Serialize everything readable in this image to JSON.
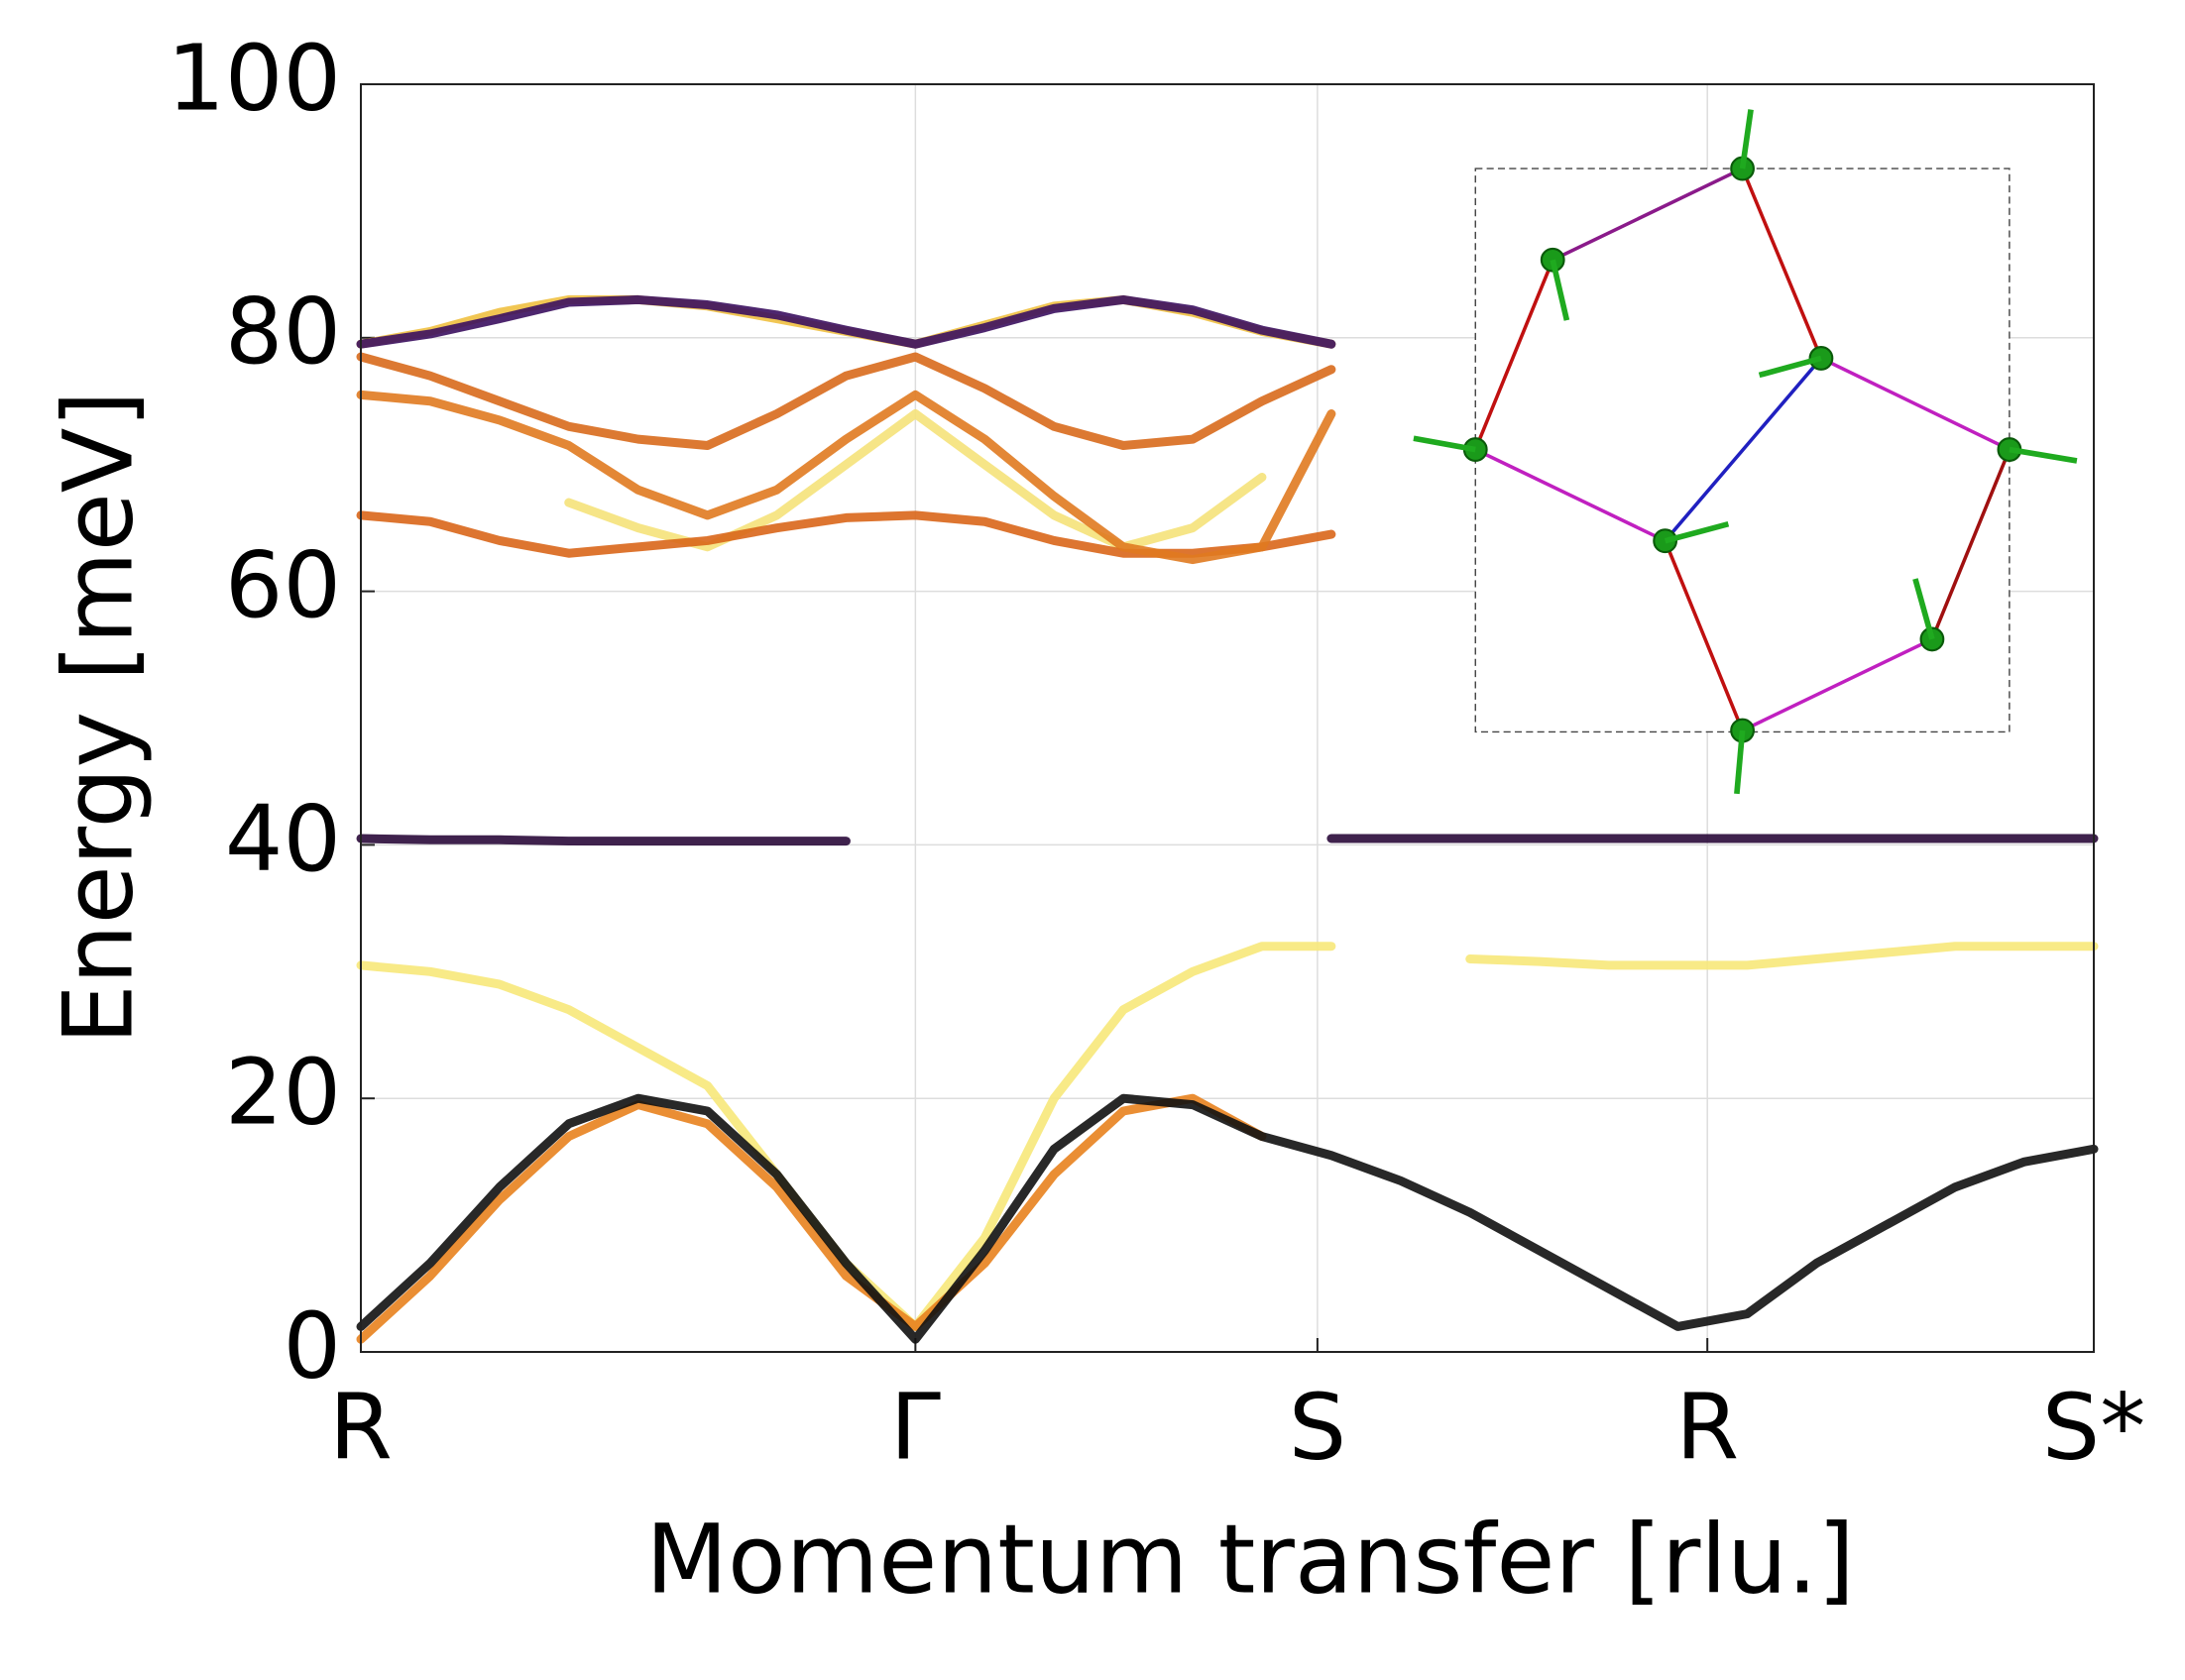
{
  "chart_data": {
    "type": "line",
    "xlabel": "Momentum transfer [rlu.]",
    "ylabel": "Energy [meV]",
    "x": [
      0,
      0.04,
      0.08,
      0.12,
      0.16,
      0.2,
      0.24,
      0.28,
      0.32,
      0.36,
      0.4,
      0.44,
      0.48,
      0.52,
      0.56,
      0.6,
      0.64,
      0.68,
      0.72,
      0.76,
      0.8,
      0.84,
      0.88,
      0.92,
      0.96,
      1
    ],
    "xlim": [
      0,
      1
    ],
    "xticks": [
      {
        "value": 0,
        "label": "R"
      },
      {
        "value": 0.32,
        "label": "Γ"
      },
      {
        "value": 0.552,
        "label": "S"
      },
      {
        "value": 0.777,
        "label": "R"
      },
      {
        "value": 1,
        "label": "S*"
      }
    ],
    "ylim": [
      0,
      100
    ],
    "yticks": [
      0,
      20,
      40,
      60,
      80,
      100
    ],
    "grid": true,
    "series": [
      {
        "color": "#f7e87a",
        "values": [
          30.5,
          30,
          29,
          27,
          24,
          21,
          14,
          7,
          2,
          9,
          20,
          27,
          30,
          32,
          32,
          null,
          31,
          30.8,
          30.5,
          30.5,
          30.5,
          31,
          31.5,
          32,
          32,
          32
        ]
      },
      {
        "color": "#e8821e",
        "values": [
          1,
          6,
          12,
          17,
          19.5,
          18,
          13,
          6,
          2,
          7,
          14,
          19,
          20,
          17,
          null,
          null,
          null,
          null,
          null,
          null,
          null,
          null,
          null,
          null,
          null,
          null
        ]
      },
      {
        "color": "#111111",
        "values": [
          2,
          7,
          13,
          18,
          20,
          19,
          14,
          7,
          1,
          8,
          16,
          20,
          19.5,
          17,
          15.5,
          13.5,
          11,
          8,
          5,
          2,
          3,
          7,
          10,
          13,
          15,
          16
        ]
      },
      {
        "color": "#2a0a3a",
        "values": [
          40.5,
          40.4,
          40.4,
          40.3,
          40.3,
          40.3,
          40.3,
          40.3,
          null,
          null,
          null,
          null,
          null,
          null,
          40.5,
          40.5,
          40.5,
          40.5,
          40.5,
          40.5,
          40.5,
          40.5,
          40.5,
          40.5,
          40.5,
          40.5
        ]
      },
      {
        "color": "#f5e27a",
        "values": [
          null,
          null,
          null,
          67,
          65,
          63.5,
          66,
          70,
          74,
          70,
          66,
          63.5,
          65,
          69,
          null,
          null,
          null,
          null,
          null,
          null,
          null,
          null,
          null,
          null,
          null,
          null
        ]
      },
      {
        "color": "#d9661a",
        "values": [
          66,
          65.5,
          64,
          63,
          63.5,
          64,
          65,
          65.8,
          66,
          65.5,
          64,
          63,
          63,
          63.5,
          64.5,
          null,
          null,
          null,
          null,
          null,
          null,
          null,
          null,
          null,
          null,
          null
        ]
      },
      {
        "color": "#e07a20",
        "values": [
          75.5,
          75,
          73.5,
          71.5,
          68,
          66,
          68,
          72,
          75.5,
          72,
          67.5,
          63.5,
          62.5,
          63.5,
          74,
          null,
          null,
          null,
          null,
          null,
          null,
          null,
          null,
          null,
          null,
          null
        ]
      },
      {
        "color": "#d86a1c",
        "values": [
          78.5,
          77,
          75,
          73,
          72,
          71.5,
          74,
          77,
          78.5,
          76,
          73,
          71.5,
          72,
          75,
          77.5,
          null,
          null,
          null,
          null,
          null,
          null,
          null,
          null,
          null,
          null,
          null
        ]
      },
      {
        "color": "#f0c040",
        "values": [
          79.5,
          80.5,
          82,
          83,
          83,
          82.5,
          81.5,
          80.5,
          79.5,
          81,
          82.5,
          83,
          82,
          80.5,
          79.5,
          null,
          null,
          null,
          null,
          null,
          null,
          null,
          null,
          null,
          null,
          null
        ]
      },
      {
        "color": "#3b0f5f",
        "values": [
          79.5,
          80.3,
          81.5,
          82.8,
          83,
          82.6,
          81.8,
          80.6,
          79.5,
          80.8,
          82.3,
          83,
          82.2,
          80.6,
          79.5,
          null,
          null,
          null,
          null,
          null,
          null,
          null,
          null,
          null,
          null,
          null
        ]
      }
    ]
  }
}
